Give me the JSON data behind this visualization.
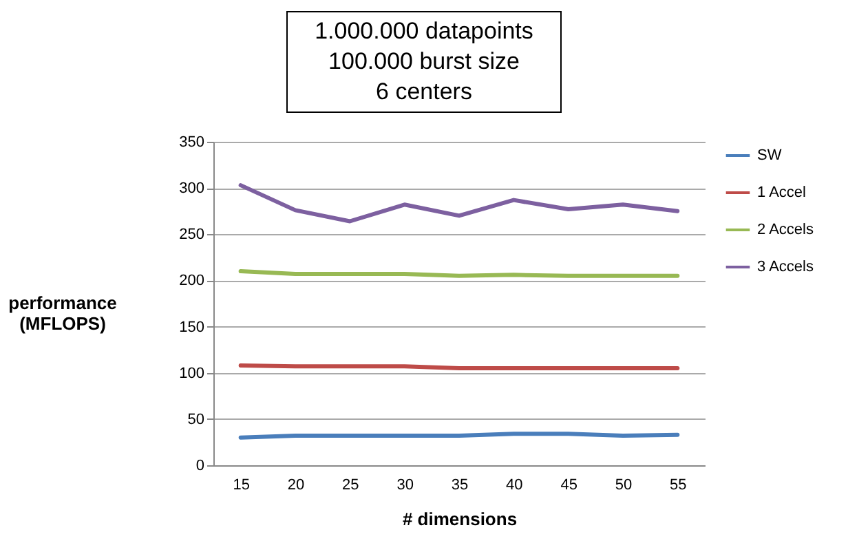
{
  "chart_data": {
    "type": "line",
    "title": "1.000.000 datapoints\n100.000 burst size\n6 centers",
    "xlabel": "# dimensions",
    "ylabel": "performance\n(MFLOPS)",
    "categories": [
      "15",
      "20",
      "25",
      "30",
      "35",
      "40",
      "45",
      "50",
      "55"
    ],
    "series": [
      {
        "name": "SW",
        "color": "#4a7ebb",
        "values": [
          30,
          32,
          32,
          32,
          32,
          34,
          34,
          32,
          33
        ]
      },
      {
        "name": "1 Accel",
        "color": "#be4b48",
        "values": [
          108,
          107,
          107,
          107,
          105,
          105,
          105,
          105,
          105
        ]
      },
      {
        "name": "2 Accels",
        "color": "#98b954",
        "values": [
          210,
          207,
          207,
          207,
          205,
          206,
          205,
          205,
          205
        ]
      },
      {
        "name": "3 Accels",
        "color": "#7d60a0",
        "values": [
          303,
          276,
          264,
          282,
          270,
          287,
          277,
          282,
          275
        ]
      }
    ],
    "ylim": [
      0,
      350
    ],
    "yticks": [
      0,
      50,
      100,
      150,
      200,
      250,
      300,
      350
    ],
    "grid": "y",
    "legend": "right",
    "marker": "none",
    "line_style": "solid"
  }
}
